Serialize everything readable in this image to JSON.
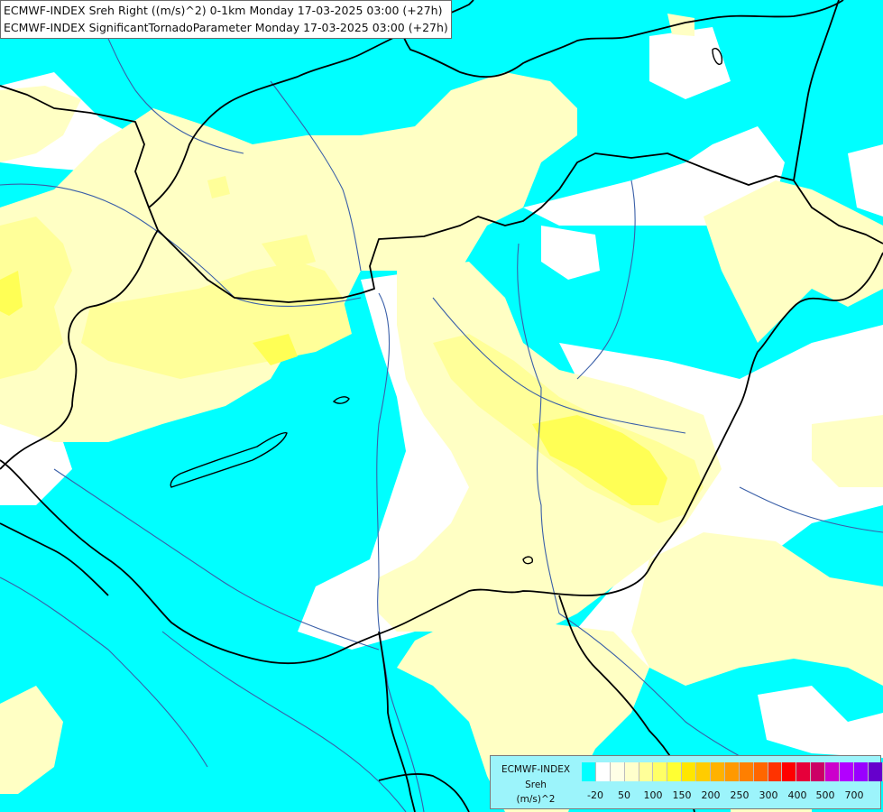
{
  "titles": {
    "line1": "ECMWF-INDEX Sreh Right ((m/s)^2) 0-1km Monday 17-03-2025 03:00 (+27h)",
    "line2": "ECMWF-INDEX SignificantTornadoParameter Monday 17-03-2025 03:00 (+27h)"
  },
  "legend": {
    "source": "ECMWF-INDEX",
    "parameter": "Sreh",
    "unit": "(m/s)^2",
    "ticks": [
      "-20",
      "50",
      "100",
      "150",
      "200",
      "250",
      "300",
      "400",
      "500",
      "700"
    ],
    "colors": [
      "#00ffff",
      "#ffffff",
      "#ffffe6",
      "#ffffcc",
      "#ffff99",
      "#ffff66",
      "#ffff33",
      "#ffe600",
      "#ffcc00",
      "#ffb200",
      "#ff9900",
      "#ff7f00",
      "#ff6600",
      "#ff3300",
      "#ff0000",
      "#e6003a",
      "#cc0066",
      "#cc00cc",
      "#b200ff",
      "#9900ff",
      "#6600cc",
      "#330099",
      "#000066"
    ]
  },
  "map_colors": {
    "ocean_low": "#00ffff",
    "band_white": "#ffffff",
    "band_pale": "#ffffc4",
    "band_yellow": "#ffff99",
    "band_strong": "#ffff55",
    "borders": "#000000",
    "rivers": "#3a5fa8"
  }
}
